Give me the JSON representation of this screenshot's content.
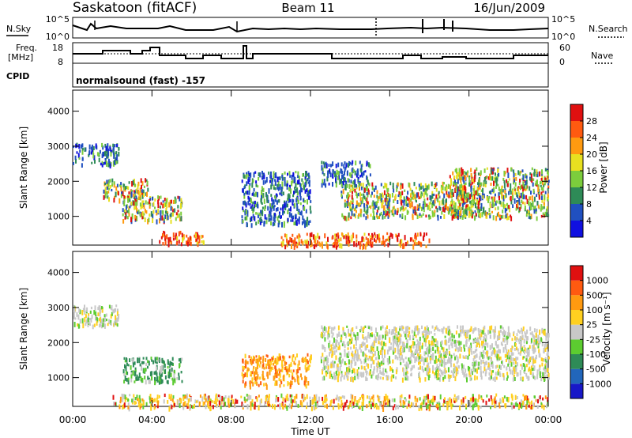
{
  "header": {
    "station": "Saskatoon (fitACF)",
    "beam": "Beam 11",
    "date": "16/Jun/2009"
  },
  "strip": {
    "nsky_label": "N.Sky",
    "nsearch_label": "N.Search",
    "nsky_ticks": [
      "10^5",
      "10^0"
    ],
    "nsearch_ticks": [
      "10^5",
      "10^0"
    ],
    "freq_label": [
      "Freq.",
      "[MHz]"
    ],
    "freq_ticks": [
      "18",
      "8"
    ],
    "nave_label": "Nave",
    "nave_ticks": [
      "60",
      "0"
    ],
    "cpid_label": "CPID",
    "cpid_text": "normalsound (fast) -157"
  },
  "chart_data": [
    {
      "type": "heatmap",
      "title": "",
      "ylabel": "Slant Range [km]",
      "ylim": [
        180,
        4600
      ],
      "yticks": [
        "1000",
        "2000",
        "3000",
        "4000"
      ],
      "colorbar_label": "Power [dB]",
      "colorbar_ticks": [
        "4",
        "8",
        "12",
        "16",
        "20",
        "24",
        "28"
      ],
      "colorbar_colors": [
        "#1010e0",
        "#2050c0",
        "#2e8b57",
        "#7ccd3c",
        "#e8e020",
        "#ff9a10",
        "#ff5a10",
        "#e01010"
      ],
      "approx_echo_regions_hours_km": [
        {
          "t": [
            0.0,
            2.3
          ],
          "r": [
            2500,
            3100
          ],
          "level": "weak"
        },
        {
          "t": [
            1.5,
            3.8
          ],
          "r": [
            1500,
            2100
          ],
          "level": "moderate"
        },
        {
          "t": [
            2.5,
            5.5
          ],
          "r": [
            900,
            1600
          ],
          "level": "moderate"
        },
        {
          "t": [
            4.3,
            6.6
          ],
          "r": [
            250,
            600
          ],
          "level": "strong"
        },
        {
          "t": [
            8.5,
            12.0
          ],
          "r": [
            800,
            2300
          ],
          "level": "weak"
        },
        {
          "t": [
            10.5,
            18.0
          ],
          "r": [
            180,
            550
          ],
          "level": "strong"
        },
        {
          "t": [
            12.5,
            15.0
          ],
          "r": [
            1900,
            2600
          ],
          "level": "weak"
        },
        {
          "t": [
            13.5,
            20.5
          ],
          "r": [
            1000,
            2000
          ],
          "level": "moderate"
        },
        {
          "t": [
            19.0,
            24.0
          ],
          "r": [
            1000,
            2400
          ],
          "level": "moderate"
        }
      ]
    },
    {
      "type": "heatmap",
      "title": "",
      "ylabel": "Slant Range [km]",
      "ylim": [
        180,
        4600
      ],
      "yticks": [
        "1000",
        "2000",
        "3000",
        "4000"
      ],
      "xlabel": "Time UT",
      "xticks": [
        "00:00",
        "04:00",
        "08:00",
        "12:00",
        "16:00",
        "20:00",
        "00:00"
      ],
      "colorbar_label": "Velocity [m s⁻¹]",
      "colorbar_ticks": [
        "1000",
        "500",
        "100",
        "25",
        "-25",
        "-100",
        "-500",
        "-1000"
      ],
      "colorbar_colors": [
        "#1818c8",
        "#2266bb",
        "#2e8b57",
        "#5ccc30",
        "#c8c8c8",
        "#ffd020",
        "#ff9a10",
        "#ff5a10",
        "#e01010"
      ],
      "approx_echo_regions_hours_km": [
        {
          "t": [
            0.0,
            2.3
          ],
          "r": [
            2500,
            3100
          ],
          "level": "grey"
        },
        {
          "t": [
            2.5,
            5.5
          ],
          "r": [
            900,
            1600
          ],
          "level": "green"
        },
        {
          "t": [
            8.5,
            12.0
          ],
          "r": [
            800,
            1700
          ],
          "level": "orange"
        },
        {
          "t": [
            12.5,
            24.0
          ],
          "r": [
            1000,
            2500
          ],
          "level": "grey"
        },
        {
          "t": [
            2.0,
            24.0
          ],
          "r": [
            180,
            550
          ],
          "level": "yellow"
        }
      ]
    }
  ]
}
